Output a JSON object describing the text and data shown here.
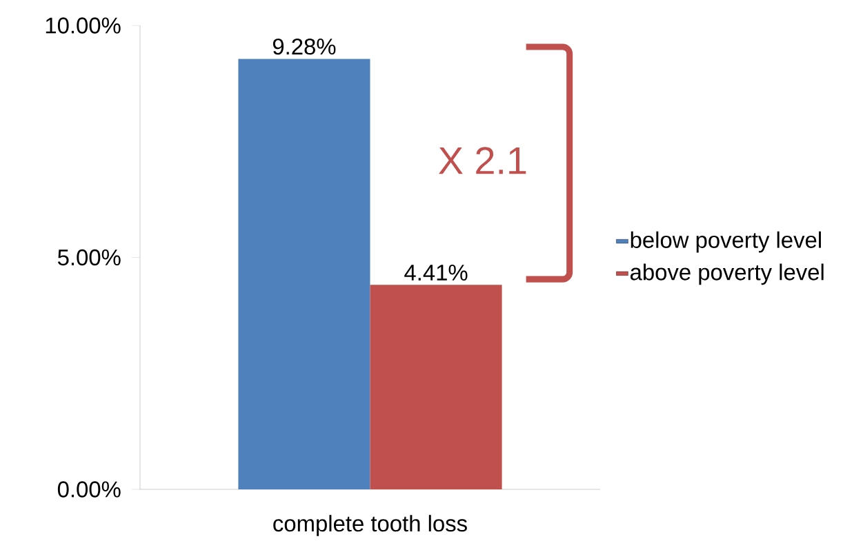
{
  "chart_data": {
    "type": "bar",
    "categories": [
      "complete tooth loss"
    ],
    "series": [
      {
        "name": "below poverty level",
        "color": "#4f81bd",
        "values": [
          9.28
        ],
        "value_labels": [
          "9.28%"
        ]
      },
      {
        "name": "above poverty level",
        "color": "#c0504d",
        "values": [
          4.41
        ],
        "value_labels": [
          "4.41%"
        ]
      }
    ],
    "ylim": [
      0,
      10
    ],
    "yticks": [
      {
        "value": 0,
        "label": "0.00%"
      },
      {
        "value": 5,
        "label": "5.00%"
      },
      {
        "value": 10,
        "label": "10.00%"
      }
    ],
    "annotations": [
      "X 2.1"
    ],
    "legend": "right",
    "grid": false
  }
}
